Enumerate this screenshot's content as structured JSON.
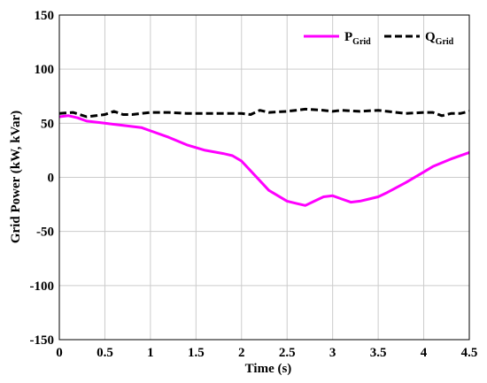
{
  "chart_data": {
    "type": "line",
    "xlabel": "Time (s)",
    "ylabel": "Grid Power (kW, kVar)",
    "xlim": [
      0,
      4.5
    ],
    "ylim": [
      -150,
      150
    ],
    "xticks": [
      "0",
      "0.5",
      "1",
      "1.5",
      "2",
      "2.5",
      "3",
      "3.5",
      "4",
      "4.5"
    ],
    "yticks": [
      "150",
      "100",
      "50",
      "0",
      "-50",
      "-100",
      "-150"
    ],
    "grid": true,
    "legend_position": "top-right",
    "series": [
      {
        "name": "P",
        "name_sub": "Grid",
        "color": "#ff00ff",
        "style": "solid",
        "x": [
          0,
          0.1,
          0.2,
          0.3,
          0.5,
          0.7,
          0.9,
          1.0,
          1.2,
          1.4,
          1.6,
          1.8,
          1.9,
          2.0,
          2.2,
          2.3,
          2.5,
          2.6,
          2.7,
          2.8,
          2.9,
          3.0,
          3.1,
          3.2,
          3.3,
          3.4,
          3.5,
          3.6,
          3.8,
          4.0,
          4.1,
          4.3,
          4.5
        ],
        "y": [
          56,
          57,
          55,
          52,
          50,
          48,
          46,
          43,
          37,
          30,
          25,
          22,
          20,
          15,
          -3,
          -12,
          -22,
          -24,
          -26,
          -22,
          -18,
          -17,
          -20,
          -23,
          -22,
          -20,
          -18,
          -14,
          -5,
          5,
          10,
          17,
          23
        ]
      },
      {
        "name": "Q",
        "name_sub": "Grid",
        "color": "#000000",
        "style": "dashed",
        "x": [
          0,
          0.15,
          0.3,
          0.4,
          0.5,
          0.6,
          0.7,
          0.8,
          1.0,
          1.2,
          1.4,
          1.6,
          1.8,
          2.0,
          2.1,
          2.2,
          2.3,
          2.5,
          2.7,
          2.9,
          3.0,
          3.1,
          3.3,
          3.5,
          3.6,
          3.8,
          4.0,
          4.1,
          4.2,
          4.3,
          4.4,
          4.5
        ],
        "y": [
          59,
          60,
          56,
          57,
          58,
          61,
          58,
          58,
          60,
          60,
          59,
          59,
          59,
          59,
          58,
          62,
          60,
          61,
          63,
          62,
          61,
          62,
          61,
          62,
          61,
          59,
          60,
          60,
          57,
          59,
          59,
          61
        ]
      }
    ]
  }
}
